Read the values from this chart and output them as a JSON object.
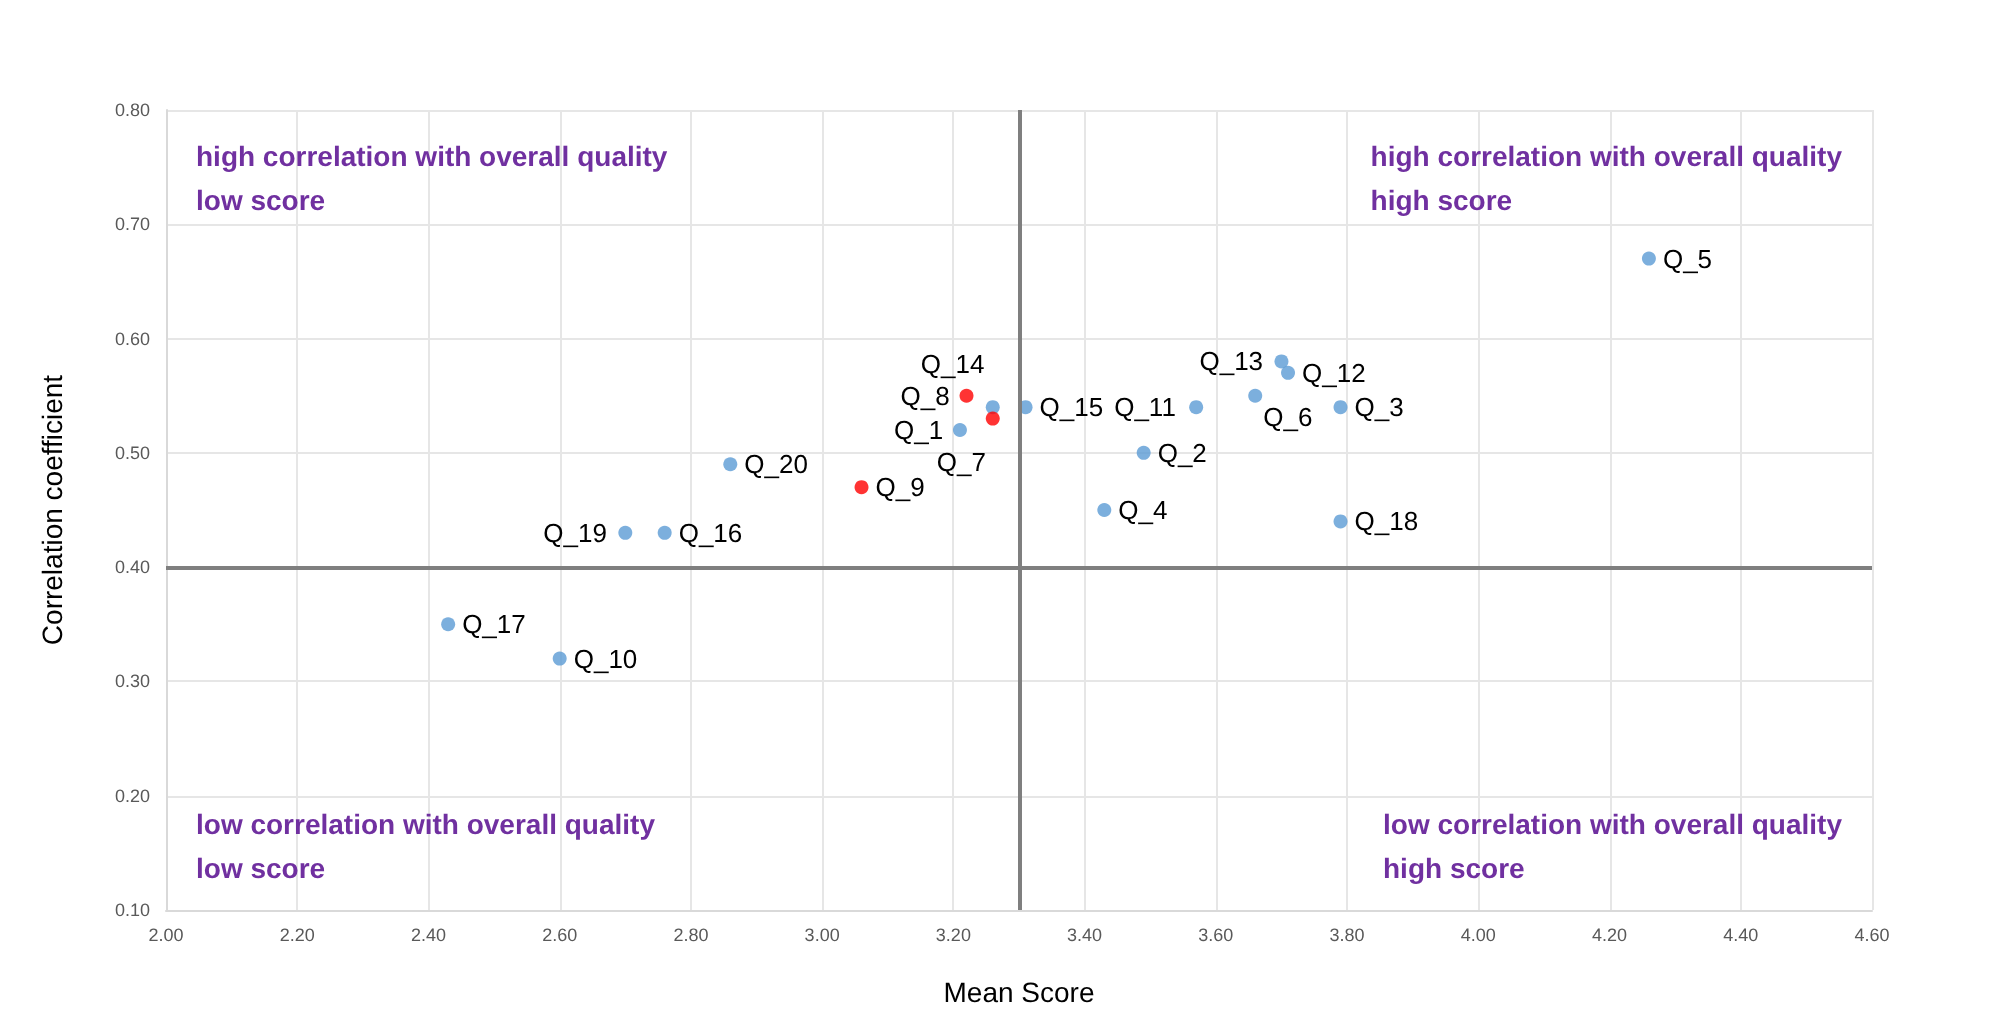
{
  "chart_data": {
    "type": "scatter",
    "xlabel": "Mean Score",
    "ylabel": "Correlation coefficient",
    "xlim": [
      2,
      4.6
    ],
    "ylim": [
      0.1,
      0.8
    ],
    "xticks": [
      {
        "value": 2,
        "label": "2.00"
      },
      {
        "value": 2.2,
        "label": "2.20"
      },
      {
        "value": 2.4,
        "label": "2.40"
      },
      {
        "value": 2.6,
        "label": "2.60"
      },
      {
        "value": 2.8,
        "label": "2.80"
      },
      {
        "value": 3,
        "label": "3.00"
      },
      {
        "value": 3.2,
        "label": "3.20"
      },
      {
        "value": 3.4,
        "label": "3.40"
      },
      {
        "value": 3.6,
        "label": "3.60"
      },
      {
        "value": 3.8,
        "label": "3.80"
      },
      {
        "value": 4,
        "label": "4.00"
      },
      {
        "value": 4.2,
        "label": "4.20"
      },
      {
        "value": 4.4,
        "label": "4.40"
      },
      {
        "value": 4.6,
        "label": "4.60"
      }
    ],
    "yticks": [
      {
        "value": 0.1,
        "label": "0.10"
      },
      {
        "value": 0.2,
        "label": "0.20"
      },
      {
        "value": 0.3,
        "label": "0.30"
      },
      {
        "value": 0.4,
        "label": "0.40"
      },
      {
        "value": 0.5,
        "label": "0.50"
      },
      {
        "value": 0.6,
        "label": "0.60"
      },
      {
        "value": 0.7,
        "label": "0.70"
      },
      {
        "value": 0.8,
        "label": "0.80"
      }
    ],
    "grid": true,
    "marker": "circle",
    "series": [
      {
        "color": "#5b9bd5",
        "x": [
          4.26,
          3.7,
          3.71,
          3.66,
          3.57,
          3.79,
          3.31,
          3.26,
          3.21,
          3.49,
          3.43,
          3.79,
          2.86,
          2.7,
          2.76,
          2.43,
          2.6
        ],
        "values": [
          0.67,
          0.58,
          0.57,
          0.55,
          0.54,
          0.54,
          0.54,
          0.54,
          0.52,
          0.5,
          0.45,
          0.44,
          0.49,
          0.43,
          0.43,
          0.35,
          0.32
        ]
      },
      {
        "color": "#ff0000",
        "x": [
          3.22,
          3.26,
          3.06
        ],
        "values": [
          0.55,
          0.53,
          0.47
        ]
      }
    ],
    "ref_lines": [
      {
        "axis": "x",
        "value": 3.3,
        "color": "#7f7f7f"
      },
      {
        "axis": "y",
        "value": 0.4,
        "color": "#7f7f7f"
      }
    ],
    "annotations": [
      "high correlation with overall quality\nlow score",
      "high correlation with overall quality\nhigh score",
      "low correlation with overall quality\nlow score",
      "low correlation with overall quality\nhigh score",
      {
        "text": "Q_5",
        "x": 4.26,
        "y": 0.67
      },
      {
        "text": "Q_13",
        "x": 3.7,
        "y": 0.58
      },
      {
        "text": "Q_12",
        "x": 3.71,
        "y": 0.57
      },
      {
        "text": "Q_6",
        "x": 3.66,
        "y": 0.55
      },
      {
        "text": "Q_11",
        "x": 3.57,
        "y": 0.54
      },
      {
        "text": "Q_3",
        "x": 3.79,
        "y": 0.54
      },
      {
        "text": "Q_15",
        "x": 3.31,
        "y": 0.54
      },
      {
        "text": "Q_14",
        "x": 3.26,
        "y": 0.54
      },
      {
        "text": "Q_8",
        "x": 3.22,
        "y": 0.55
      },
      {
        "text": "Q_7",
        "x": 3.26,
        "y": 0.53
      },
      {
        "text": "Q_1",
        "x": 3.21,
        "y": 0.52
      },
      {
        "text": "Q_9",
        "x": 3.06,
        "y": 0.47
      },
      {
        "text": "Q_2",
        "x": 3.49,
        "y": 0.5
      },
      {
        "text": "Q_4",
        "x": 3.43,
        "y": 0.45
      },
      {
        "text": "Q_18",
        "x": 3.79,
        "y": 0.44
      },
      {
        "text": "Q_20",
        "x": 2.86,
        "y": 0.49
      },
      {
        "text": "Q_19",
        "x": 2.7,
        "y": 0.43
      },
      {
        "text": "Q_16",
        "x": 2.76,
        "y": 0.43
      },
      {
        "text": "Q_17",
        "x": 2.43,
        "y": 0.35
      },
      {
        "text": "Q_10",
        "x": 2.6,
        "y": 0.32
      }
    ]
  }
}
